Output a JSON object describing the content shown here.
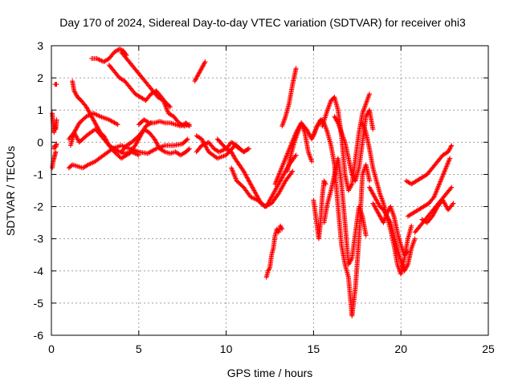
{
  "chart_data": {
    "type": "scatter",
    "title": "Day 170 of 2024, Sidereal Day-to-day VTEC variation (SDTVAR) for receiver ohi3",
    "xlabel": "GPS time / hours",
    "ylabel": "SDTVAR / TECUs",
    "xlim": [
      0,
      25
    ],
    "ylim": [
      -6,
      3
    ],
    "xticks": [
      0,
      5,
      10,
      15,
      20,
      25
    ],
    "yticks": [
      -6,
      -5,
      -4,
      -3,
      -2,
      -1,
      0,
      1,
      2,
      3
    ],
    "grid": true,
    "marker": "+",
    "color": "#ff0000",
    "series": [
      {
        "x": [
          0.05,
          0.1,
          0.15,
          0.2,
          0.25,
          0.3
        ],
        "y": [
          0.9,
          0.6,
          0.3,
          0.5,
          0.4,
          0.7
        ]
      },
      {
        "x": [
          0.05,
          0.1,
          0.15,
          0.2,
          0.25
        ],
        "y": [
          -0.8,
          -0.6,
          -0.5,
          -0.4,
          -0.3
        ]
      },
      {
        "x": [
          0.15,
          0.2,
          0.25,
          0.3
        ],
        "y": [
          -0.2,
          -0.1,
          -0.15,
          -0.05
        ]
      },
      {
        "x": [
          0.2,
          0.25,
          0.3
        ],
        "y": [
          1.8,
          1.8,
          1.8
        ]
      },
      {
        "x": [
          1.2,
          1.3,
          1.5,
          1.7,
          2.0,
          2.3,
          2.6,
          2.8
        ],
        "y": [
          1.9,
          1.6,
          1.4,
          1.3,
          1.1,
          0.8,
          0.5,
          0.3
        ]
      },
      {
        "x": [
          1.1,
          1.3,
          1.6,
          2.0,
          2.4,
          2.8,
          3.3,
          3.8
        ],
        "y": [
          -0.1,
          0.3,
          0.6,
          0.8,
          0.9,
          0.8,
          0.7,
          0.55
        ]
      },
      {
        "x": [
          1.0,
          1.2,
          1.5,
          1.8,
          2.1,
          2.5,
          3.0,
          3.5,
          4.0,
          4.5,
          5.0,
          5.5,
          6.0,
          6.5,
          7.0,
          7.5,
          7.8
        ],
        "y": [
          -0.8,
          -0.7,
          -0.75,
          -0.8,
          -0.7,
          -0.6,
          -0.4,
          -0.2,
          -0.1,
          -0.2,
          -0.3,
          -0.35,
          -0.2,
          -0.1,
          -0.1,
          -0.05,
          0.1
        ]
      },
      {
        "x": [
          1.0,
          1.3,
          1.6,
          2.0,
          2.5,
          3.0,
          3.3,
          3.6,
          4.0,
          4.3,
          4.6,
          5.0
        ],
        "y": [
          0.1,
          0.3,
          0.0,
          0.2,
          0.4,
          0.2,
          -0.1,
          -0.3,
          -0.5,
          -0.4,
          -0.3,
          -0.4
        ]
      },
      {
        "x": [
          2.3,
          2.6,
          3.0,
          3.3,
          3.6,
          3.9,
          4.1,
          4.3
        ],
        "y": [
          2.6,
          2.6,
          2.5,
          2.6,
          2.8,
          2.9,
          2.85,
          2.7
        ]
      },
      {
        "x": [
          3.3,
          3.6,
          3.9,
          4.2,
          4.5,
          4.8,
          5.1,
          5.4,
          5.7,
          6.0,
          6.3,
          6.6,
          6.8
        ],
        "y": [
          2.4,
          2.2,
          2.0,
          1.9,
          1.7,
          1.5,
          1.4,
          1.3,
          1.5,
          1.6,
          1.4,
          1.2,
          1.1
        ]
      },
      {
        "x": [
          4.0,
          4.3,
          4.6,
          4.9,
          5.2,
          5.5,
          5.8,
          6.1,
          6.4,
          6.7,
          7.0,
          7.3,
          7.6,
          7.9
        ],
        "y": [
          2.8,
          2.6,
          2.4,
          2.2,
          2.0,
          1.8,
          1.6,
          1.4,
          1.3,
          0.9,
          0.8,
          0.6,
          0.5,
          0.55
        ]
      },
      {
        "x": [
          2.7,
          3.0,
          3.3,
          3.6,
          3.9,
          4.2,
          4.5,
          4.8,
          5.1,
          5.4,
          5.7
        ],
        "y": [
          0.3,
          0.1,
          -0.1,
          -0.2,
          -0.3,
          -0.35,
          -0.3,
          -0.1,
          0.2,
          0.5,
          0.6
        ]
      },
      {
        "x": [
          5.0,
          5.3,
          5.6,
          5.9,
          6.2,
          6.5,
          6.8,
          7.1,
          7.4,
          7.7,
          7.9
        ],
        "y": [
          0.55,
          0.7,
          0.6,
          0.6,
          0.65,
          0.6,
          0.6,
          0.55,
          0.5,
          0.6,
          0.5
        ]
      },
      {
        "x": [
          4.0,
          4.3,
          4.6,
          5.0,
          5.3,
          5.6,
          5.9,
          6.2,
          6.5,
          6.8,
          7.1,
          7.4,
          7.7,
          7.9
        ],
        "y": [
          -0.3,
          -0.1,
          0.0,
          0.2,
          0.4,
          0.3,
          0.1,
          -0.2,
          -0.3,
          -0.35,
          -0.3,
          -0.4,
          -0.3,
          -0.2
        ]
      },
      {
        "x": [
          8.2,
          8.4,
          8.6,
          8.8
        ],
        "y": [
          1.9,
          2.1,
          2.3,
          2.5
        ]
      },
      {
        "x": [
          8.3,
          8.6,
          9.0,
          9.3,
          9.6,
          10.0,
          10.3,
          10.6,
          11.0,
          11.3
        ],
        "y": [
          -0.3,
          -0.1,
          0.0,
          -0.2,
          -0.3,
          -0.2,
          0.0,
          -0.1,
          -0.3,
          -0.2
        ]
      },
      {
        "x": [
          8.3,
          8.6,
          9.0,
          9.5,
          10.0,
          10.5,
          11.0,
          11.3
        ],
        "y": [
          0.2,
          0.1,
          -0.3,
          -0.5,
          -0.4,
          -0.1,
          -0.3,
          -0.2
        ]
      },
      {
        "x": [
          9.5,
          10.0,
          10.3,
          10.5,
          11.0,
          11.3,
          11.6,
          12.0,
          12.3,
          12.6,
          13.0,
          13.3,
          13.6,
          14.0
        ],
        "y": [
          0.1,
          -0.2,
          -0.3,
          -0.5,
          -0.9,
          -1.2,
          -1.5,
          -1.9,
          -2.0,
          -1.7,
          -1.3,
          -1.0,
          -0.7,
          -0.4
        ]
      },
      {
        "x": [
          10.3,
          10.6,
          11.0,
          11.4,
          11.8,
          12.2,
          12.6,
          13.0,
          13.4,
          13.8
        ],
        "y": [
          -0.8,
          -1.2,
          -1.4,
          -1.7,
          -1.8,
          -2.0,
          -1.9,
          -1.6,
          -1.2,
          -0.9
        ]
      },
      {
        "x": [
          12.3,
          12.4,
          12.5,
          12.6,
          12.7,
          12.8,
          12.9,
          13.0,
          13.1,
          13.2
        ],
        "y": [
          -4.2,
          -4.0,
          -3.9,
          -3.5,
          -3.3,
          -2.9,
          -2.7,
          -2.8,
          -2.6,
          -2.7
        ]
      },
      {
        "x": [
          12.8,
          13.1,
          13.4,
          13.7,
          14.0,
          14.3,
          14.6,
          14.9,
          15.2,
          15.5
        ],
        "y": [
          -1.3,
          -0.9,
          -0.5,
          -0.1,
          0.3,
          0.6,
          0.4,
          0.1,
          0.5,
          0.7
        ]
      },
      {
        "x": [
          13.2,
          13.4,
          13.6,
          13.8,
          14.0
        ],
        "y": [
          0.5,
          0.8,
          1.2,
          1.8,
          2.3
        ]
      },
      {
        "x": [
          13.5,
          13.7,
          13.9,
          14.1,
          14.3,
          14.5,
          14.7,
          14.9
        ],
        "y": [
          -0.9,
          -0.4,
          0.0,
          0.3,
          0.6,
          0.3,
          -0.3,
          -0.6
        ]
      },
      {
        "x": [
          15.0,
          15.2,
          15.4,
          15.6,
          15.8,
          16.0,
          16.2,
          16.4,
          16.6,
          16.8,
          17.0,
          17.2,
          17.4,
          17.6,
          17.8,
          18.0,
          18.2
        ],
        "y": [
          0.2,
          0.5,
          0.7,
          0.6,
          0.3,
          -0.1,
          -0.7,
          -2.0,
          -3.2,
          -3.8,
          -4.2,
          -5.4,
          -4.5,
          -3.0,
          -1.0,
          -0.7,
          -1.2
        ]
      },
      {
        "x": [
          15.0,
          15.1,
          15.2,
          15.3,
          15.4,
          15.5,
          15.6,
          15.7
        ],
        "y": [
          -1.8,
          -2.2,
          -2.6,
          -3.0,
          -2.5,
          -1.7,
          -1.2,
          -1.3
        ]
      },
      {
        "x": [
          15.5,
          15.8,
          16.0,
          16.2,
          16.4,
          16.6,
          16.8,
          17.0,
          17.2,
          17.4,
          17.6,
          17.8,
          18.0,
          18.2
        ],
        "y": [
          0.5,
          1.0,
          1.3,
          1.4,
          1.0,
          0.2,
          -1.0,
          -1.5,
          -1.3,
          -0.5,
          0.3,
          0.9,
          1.2,
          1.5
        ]
      },
      {
        "x": [
          15.6,
          15.8,
          16.0,
          16.2,
          16.4,
          16.6,
          16.8,
          17.0,
          17.2,
          17.4,
          17.6,
          17.8,
          18.0
        ],
        "y": [
          -2.5,
          -1.9,
          -1.5,
          -1.0,
          -0.5,
          -1.3,
          -2.5,
          -3.8,
          -3.6,
          -2.8,
          -2.0,
          -2.3,
          -2.9
        ]
      },
      {
        "x": [
          16.2,
          16.4,
          16.6,
          16.8,
          17.0,
          17.2,
          17.4,
          17.6,
          17.8,
          18.0,
          18.2,
          18.4
        ],
        "y": [
          0.8,
          0.6,
          0.3,
          0.0,
          -0.5,
          -1.0,
          -1.2,
          -0.8,
          0.0,
          0.8,
          1.0,
          0.4
        ]
      },
      {
        "x": [
          17.8,
          18.0,
          18.2,
          18.4,
          18.6,
          18.8,
          19.0,
          19.2,
          19.4,
          19.6,
          19.8,
          20.0,
          20.2,
          20.4,
          20.6
        ],
        "y": [
          0.6,
          0.3,
          -0.2,
          -0.8,
          -1.2,
          -1.6,
          -1.9,
          -2.3,
          -2.7,
          -3.2,
          -3.8,
          -4.1,
          -3.6,
          -3.0,
          -2.6
        ]
      },
      {
        "x": [
          18.2,
          18.4,
          18.6,
          18.8,
          19.0,
          19.2,
          19.4,
          19.6,
          19.8,
          20.0,
          20.2,
          20.4,
          20.6,
          20.8
        ],
        "y": [
          -1.4,
          -1.6,
          -1.8,
          -2.0,
          -2.1,
          -2.3,
          -2.5,
          -2.9,
          -3.3,
          -3.7,
          -4.0,
          -3.8,
          -3.3,
          -3.0
        ]
      },
      {
        "x": [
          18.4,
          18.6,
          18.8,
          19.0,
          19.2,
          19.4,
          19.6,
          19.8,
          20.0,
          20.2,
          20.4
        ],
        "y": [
          -1.9,
          -2.1,
          -2.3,
          -2.5,
          -2.2,
          -2.0,
          -2.3,
          -2.8,
          -3.2,
          -3.5,
          -3.4
        ]
      },
      {
        "x": [
          20.3,
          20.6,
          20.9,
          21.2,
          21.5,
          21.8,
          22.1,
          22.4,
          22.7,
          22.9
        ],
        "y": [
          -1.2,
          -1.3,
          -1.2,
          -1.1,
          -1.0,
          -0.8,
          -0.6,
          -0.4,
          -0.3,
          -0.1
        ]
      },
      {
        "x": [
          20.4,
          20.7,
          21.0,
          21.3,
          21.6,
          21.9,
          22.2,
          22.5,
          22.8
        ],
        "y": [
          -2.3,
          -2.2,
          -2.1,
          -2.0,
          -1.9,
          -1.7,
          -1.3,
          -0.9,
          -0.5
        ]
      },
      {
        "x": [
          20.8,
          21.1,
          21.4,
          21.7,
          22.0,
          22.3,
          22.6,
          22.9
        ],
        "y": [
          -2.8,
          -2.6,
          -2.4,
          -2.2,
          -2.0,
          -1.8,
          -1.6,
          -1.4
        ]
      },
      {
        "x": [
          21.2,
          21.5,
          21.8,
          22.1,
          22.4,
          22.7,
          23.0
        ],
        "y": [
          -2.4,
          -2.5,
          -2.3,
          -2.0,
          -1.8,
          -2.1,
          -1.9
        ]
      }
    ]
  }
}
